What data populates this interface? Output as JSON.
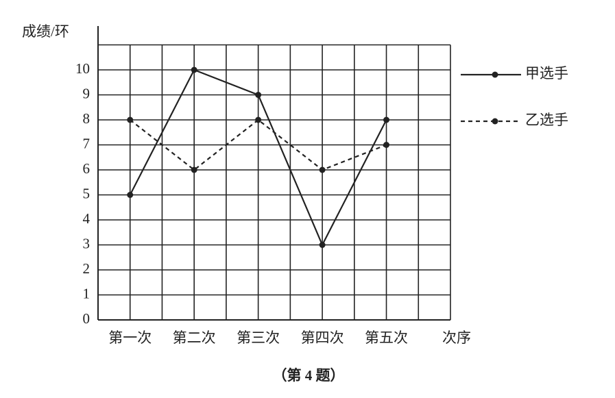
{
  "chart_data": {
    "type": "line",
    "y_label": "成绩/环",
    "x_label": "次序",
    "caption": "（第 4 题）",
    "categories": [
      "第一次",
      "第二次",
      "第三次",
      "第四次",
      "第五次"
    ],
    "series": [
      {
        "name": "甲选手",
        "color": "#222222",
        "linestyle": "solid",
        "values": [
          5,
          10,
          9,
          3,
          8
        ]
      },
      {
        "name": "乙选手",
        "color": "#222222",
        "linestyle": "dashed",
        "values": [
          8,
          6,
          8,
          6,
          7
        ]
      }
    ],
    "ylim": [
      0,
      11
    ],
    "yticks": [
      0,
      1,
      2,
      3,
      4,
      5,
      6,
      7,
      8,
      9,
      10
    ],
    "grid": true
  }
}
